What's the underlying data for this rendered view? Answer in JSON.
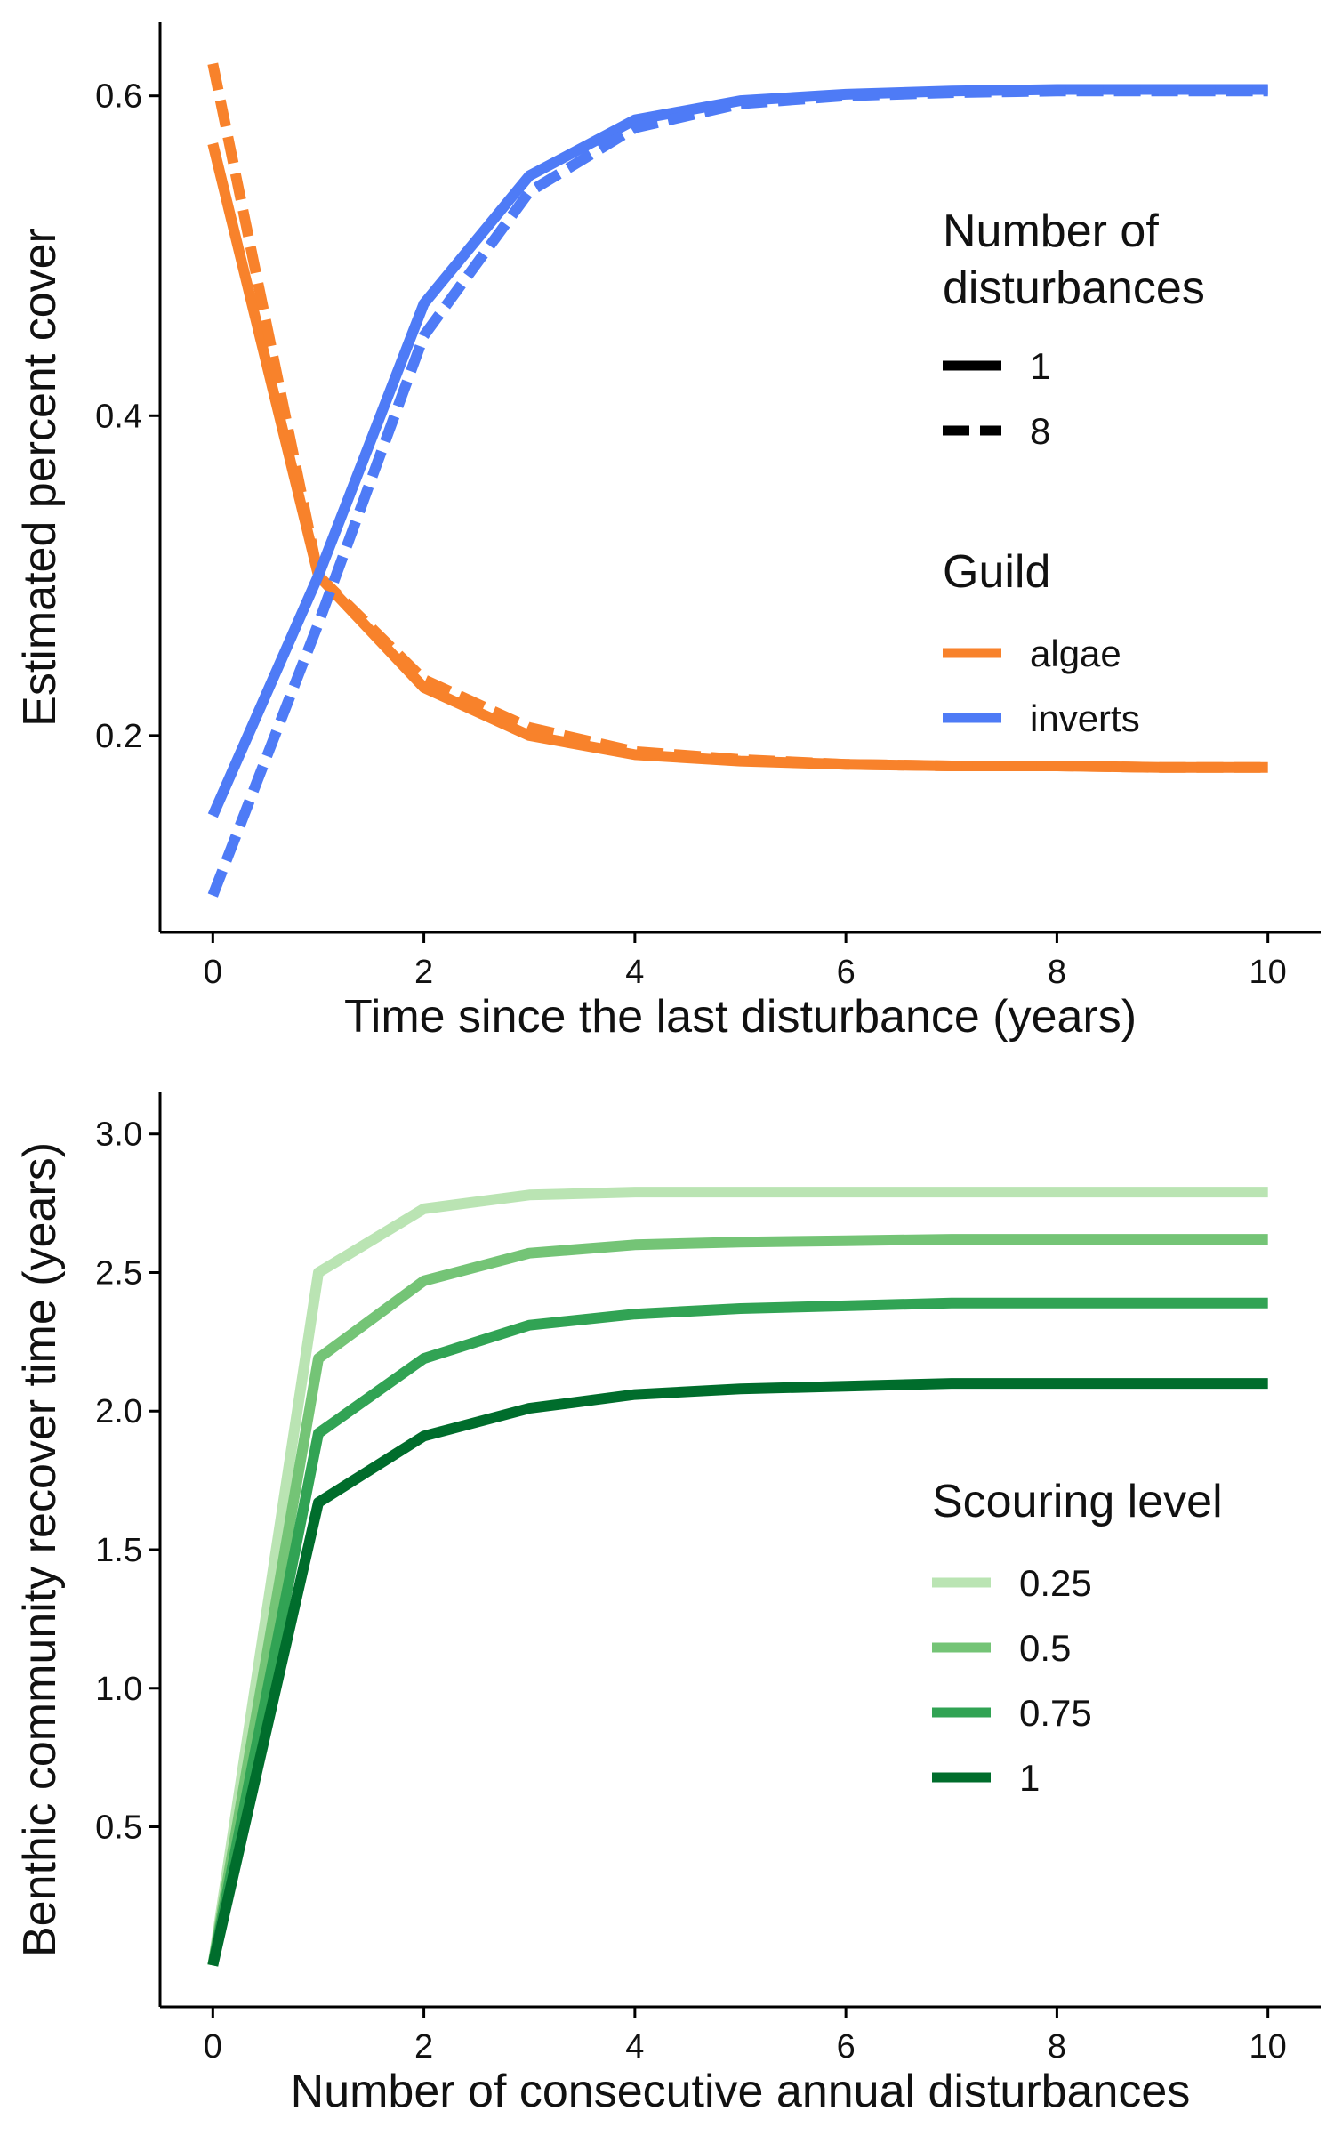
{
  "chart_data": [
    {
      "type": "line",
      "x": [
        0,
        1,
        2,
        3,
        4,
        5,
        6,
        7,
        8,
        9,
        10
      ],
      "xlabel": "Time since the last disturbance (years)",
      "ylabel": "Estimated percent cover",
      "xlim": [
        -0.5,
        10.5
      ],
      "ylim": [
        0.077,
        0.646
      ],
      "xticks": [
        0,
        2,
        4,
        6,
        8,
        10
      ],
      "xtick_labels": [
        "0",
        "2",
        "4",
        "6",
        "8",
        "10"
      ],
      "yticks": [
        0.2,
        0.4,
        0.6
      ],
      "ytick_labels": [
        "0.2",
        "0.4",
        "0.6"
      ],
      "grid": false,
      "legend_position": "right",
      "legends": [
        {
          "title_lines": [
            "Number of",
            "disturbances"
          ],
          "entries": [
            {
              "label": "1",
              "style": "solid",
              "color": "#000000"
            },
            {
              "label": "8",
              "style": "dashed",
              "color": "#000000"
            }
          ]
        },
        {
          "title_lines": [
            "Guild"
          ],
          "entries": [
            {
              "label": "algae",
              "style": "solid",
              "color": "#F8822B"
            },
            {
              "label": "inverts",
              "style": "solid",
              "color": "#4E7BF6"
            }
          ]
        }
      ],
      "series": [
        {
          "guild": "algae",
          "disturbances": "1",
          "color": "#F8822B",
          "style": "solid",
          "values": [
            0.57,
            0.3,
            0.23,
            0.2,
            0.188,
            0.184,
            0.182,
            0.181,
            0.181,
            0.18,
            0.18
          ]
        },
        {
          "guild": "algae",
          "disturbances": "8",
          "color": "#F8822B",
          "style": "dashed",
          "values": [
            0.62,
            0.3,
            0.235,
            0.205,
            0.19,
            0.185,
            0.182,
            0.181,
            0.181,
            0.18,
            0.18
          ]
        },
        {
          "guild": "inverts",
          "disturbances": "1",
          "color": "#4E7BF6",
          "style": "solid",
          "values": [
            0.15,
            0.3,
            0.47,
            0.55,
            0.585,
            0.597,
            0.601,
            0.603,
            0.604,
            0.604,
            0.604
          ]
        },
        {
          "guild": "inverts",
          "disturbances": "8",
          "color": "#4E7BF6",
          "style": "dashed",
          "values": [
            0.1,
            0.27,
            0.45,
            0.54,
            0.58,
            0.595,
            0.6,
            0.602,
            0.603,
            0.603,
            0.603
          ]
        }
      ]
    },
    {
      "type": "line",
      "x": [
        0,
        1,
        2,
        3,
        4,
        5,
        6,
        7,
        8,
        9,
        10
      ],
      "xlabel": "Number of consecutive annual disturbances",
      "ylabel": "Benthic community recover time (years)",
      "xlim": [
        -0.5,
        10.5
      ],
      "ylim": [
        -0.15,
        3.15
      ],
      "xticks": [
        0,
        2,
        4,
        6,
        8,
        10
      ],
      "xtick_labels": [
        "0",
        "2",
        "4",
        "6",
        "8",
        "10"
      ],
      "yticks": [
        0.5,
        1.0,
        1.5,
        2.0,
        2.5,
        3.0
      ],
      "ytick_labels": [
        "0.5",
        "1.0",
        "1.5",
        "2.0",
        "2.5",
        "3.0"
      ],
      "grid": false,
      "legend_position": "right",
      "legends": [
        {
          "title_lines": [
            "Scouring level"
          ],
          "entries": [
            {
              "label": "0.25",
              "style": "solid",
              "color": "#BAE4B3"
            },
            {
              "label": "0.5",
              "style": "solid",
              "color": "#74C476"
            },
            {
              "label": "0.75",
              "style": "solid",
              "color": "#31A354"
            },
            {
              "label": "1",
              "style": "solid",
              "color": "#006D2C"
            }
          ]
        }
      ],
      "series": [
        {
          "name": "0.25",
          "color": "#BAE4B3",
          "style": "solid",
          "values": [
            0.0,
            2.5,
            2.73,
            2.78,
            2.79,
            2.79,
            2.79,
            2.79,
            2.79,
            2.79,
            2.79
          ]
        },
        {
          "name": "0.5",
          "color": "#74C476",
          "style": "solid",
          "values": [
            0.0,
            2.19,
            2.47,
            2.57,
            2.6,
            2.61,
            2.615,
            2.62,
            2.62,
            2.62,
            2.62
          ]
        },
        {
          "name": "0.75",
          "color": "#31A354",
          "style": "solid",
          "values": [
            0.0,
            1.92,
            2.19,
            2.31,
            2.35,
            2.37,
            2.38,
            2.39,
            2.39,
            2.39,
            2.39
          ]
        },
        {
          "name": "1",
          "color": "#006D2C",
          "style": "solid",
          "values": [
            0.0,
            1.67,
            1.91,
            2.01,
            2.06,
            2.08,
            2.09,
            2.1,
            2.1,
            2.1,
            2.1
          ]
        }
      ]
    }
  ]
}
